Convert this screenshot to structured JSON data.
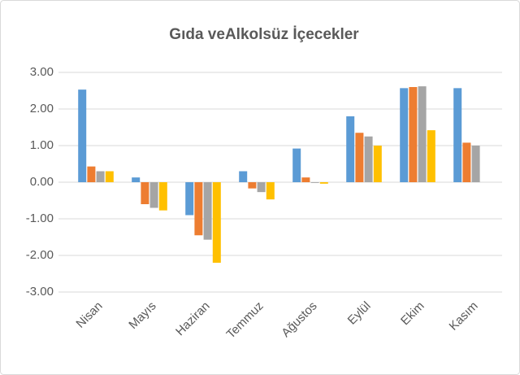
{
  "chart_data": {
    "type": "bar",
    "title": "Gıda veAlkolsüz İçecekler",
    "categories": [
      "Nisan",
      "Mayıs",
      "Haziran",
      "Temmuz",
      "Ağustos",
      "Eylül",
      "Ekim",
      "Kasım"
    ],
    "series": [
      {
        "color": "#5b9bd5",
        "values": [
          2.53,
          0.13,
          -0.9,
          0.3,
          0.92,
          1.8,
          2.57,
          2.57
        ]
      },
      {
        "color": "#ed7d31",
        "values": [
          0.43,
          -0.6,
          -1.45,
          -0.17,
          0.13,
          1.35,
          2.6,
          1.08
        ]
      },
      {
        "color": "#a5a5a5",
        "values": [
          0.3,
          -0.7,
          -1.57,
          -0.27,
          -0.02,
          1.25,
          2.62,
          1.0
        ]
      },
      {
        "color": "#ffc000",
        "values": [
          0.3,
          -0.77,
          -2.2,
          -0.47,
          -0.04,
          1.0,
          1.42,
          null
        ]
      }
    ],
    "ylim": [
      -3,
      3
    ],
    "yticks": [
      {
        "value": -3,
        "label": "-3.00"
      },
      {
        "value": -2,
        "label": "-2.00"
      },
      {
        "value": -1,
        "label": "-1.00"
      },
      {
        "value": 0,
        "label": "0.00"
      },
      {
        "value": 1,
        "label": "1.00"
      },
      {
        "value": 2,
        "label": "2.00"
      },
      {
        "value": 3,
        "label": "3.00"
      }
    ],
    "grid": true
  }
}
